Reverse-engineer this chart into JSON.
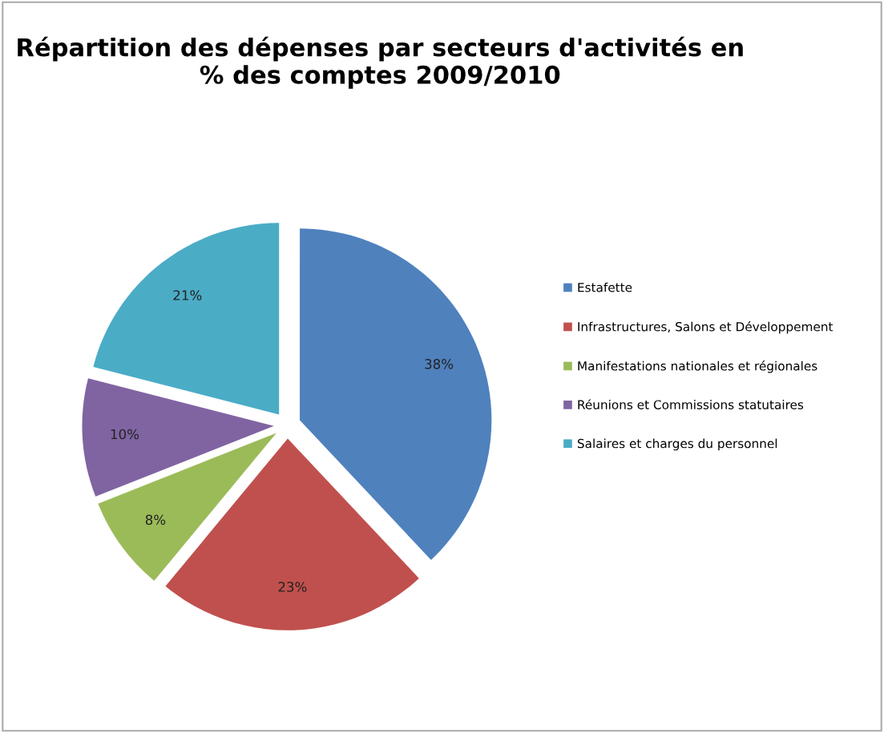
{
  "chart_data": {
    "type": "pie",
    "title": "Répartition des dépenses par secteurs d'activités en % des comptes 2009/2010",
    "categories": [
      "Estafette",
      "Infrastructures, Salons et Développement",
      "Manifestations nationales et régionales",
      "Réunions et Commissions statutaires",
      "Salaires et charges du personnel"
    ],
    "values": [
      38,
      23,
      8,
      10,
      21
    ],
    "colors": [
      "#4f81bd",
      "#c0504d",
      "#9bbb59",
      "#8064a2",
      "#4bacc6"
    ],
    "value_labels": [
      "38%",
      "23%",
      "8%",
      "10%",
      "21%"
    ],
    "legend": "right"
  }
}
